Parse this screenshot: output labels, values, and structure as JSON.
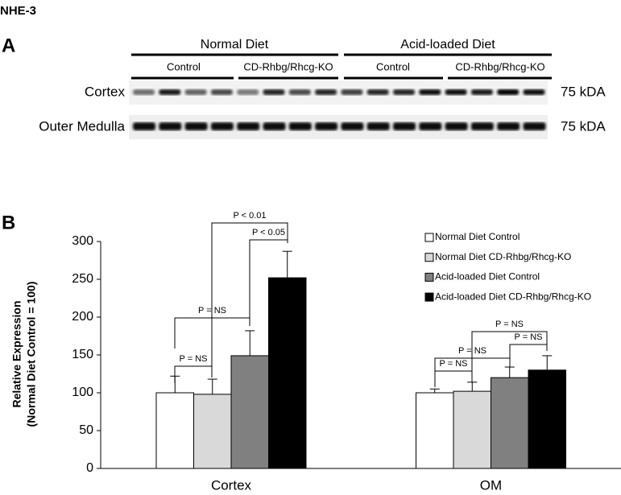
{
  "figure_title": "NHE-3",
  "panel_a": {
    "label": "A",
    "groups": [
      {
        "name": "Normal Diet",
        "subgroups": [
          "Control",
          "CD-Rhbg/Rhcg-KO"
        ]
      },
      {
        "name": "Acid-loaded Diet",
        "subgroups": [
          "Control",
          "CD-Rhbg/Rhcg-KO"
        ]
      }
    ],
    "rows": [
      {
        "label": "Cortex",
        "size": "75 kDA"
      },
      {
        "label": "Outer Medulla",
        "size": "75 kDA"
      }
    ]
  },
  "chart_data": {
    "type": "bar",
    "panel_label": "B",
    "y_label": [
      "Relative Expression",
      "(Normal Diet Control = 100)"
    ],
    "categories": [
      "Cortex",
      "OM"
    ],
    "series": [
      {
        "name": "Normal Diet Control",
        "color": "#ffffff",
        "values": [
          100,
          100
        ],
        "errors": [
          22,
          5
        ]
      },
      {
        "name": "Normal Diet CD-Rhbg/Rhcg-KO",
        "color": "#d9d9d9",
        "values": [
          98,
          102
        ],
        "errors": [
          20,
          12
        ]
      },
      {
        "name": "Acid-loaded Diet Control",
        "color": "#808080",
        "values": [
          149,
          120
        ],
        "errors": [
          33,
          14
        ]
      },
      {
        "name": "Acid-loaded Diet CD-Rhbg/Rhcg-KO",
        "color": "#000000",
        "values": [
          252,
          130
        ],
        "errors": [
          35,
          19
        ]
      }
    ],
    "ylim": [
      0,
      300
    ],
    "yticks": [
      0,
      50,
      100,
      150,
      200,
      250,
      300
    ],
    "annotations": [
      "P = NS",
      "P = NS",
      "P < 0.01",
      "P < 0.05",
      "P = NS",
      "P = NS",
      "P = NS",
      "P = NS"
    ]
  }
}
